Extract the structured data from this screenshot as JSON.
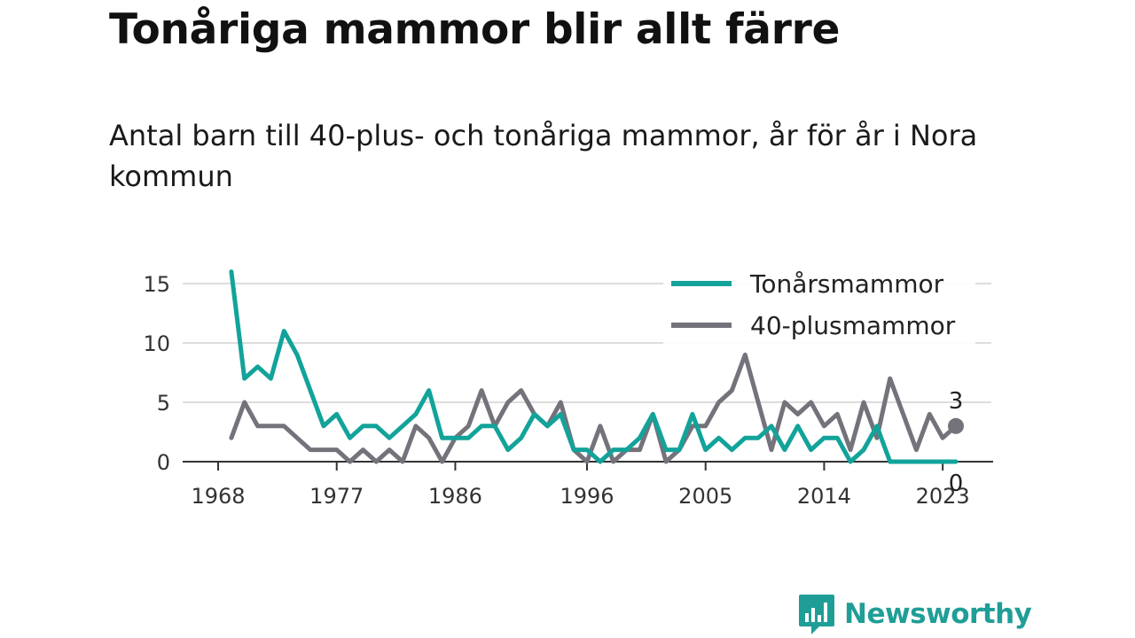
{
  "header": {
    "title": "Tonåriga mammor blir allt färre",
    "subtitle": "Antal barn till 40-plus- och tonåriga mammor, år för år i Nora kommun"
  },
  "logo": {
    "text": "Newsworthy",
    "icon": "bar-chart-icon",
    "color": "#1f9e97"
  },
  "colors": {
    "teal": "#12a39a",
    "gray": "#74727a",
    "grid": "#dddddd",
    "axis": "#333333"
  },
  "chart_data": {
    "type": "line",
    "x_ticks": [
      1968,
      1977,
      1986,
      1996,
      2005,
      2014,
      2023
    ],
    "y_ticks": [
      0,
      5,
      10,
      15
    ],
    "ylim": [
      0,
      17
    ],
    "xlim": [
      1968,
      2024
    ],
    "legend_position": "top-right",
    "grid": true,
    "series": [
      {
        "name": "Tonårsmammor",
        "color": "#12a39a",
        "x": [
          1969,
          1970,
          1971,
          1972,
          1973,
          1974,
          1975,
          1976,
          1977,
          1978,
          1979,
          1980,
          1981,
          1982,
          1983,
          1984,
          1985,
          1986,
          1987,
          1988,
          1989,
          1990,
          1991,
          1992,
          1993,
          1994,
          1995,
          1996,
          1997,
          1998,
          1999,
          2000,
          2001,
          2002,
          2003,
          2004,
          2005,
          2006,
          2007,
          2008,
          2009,
          2010,
          2011,
          2012,
          2013,
          2014,
          2015,
          2016,
          2017,
          2018,
          2019,
          2020,
          2021,
          2022,
          2023,
          2024
        ],
        "values": [
          16,
          7,
          8,
          7,
          11,
          9,
          6,
          3,
          4,
          2,
          3,
          3,
          2,
          3,
          4,
          6,
          2,
          2,
          2,
          3,
          3,
          1,
          2,
          4,
          3,
          4,
          1,
          1,
          0,
          1,
          1,
          2,
          4,
          1,
          1,
          4,
          1,
          2,
          1,
          2,
          2,
          3,
          1,
          3,
          1,
          2,
          2,
          0,
          1,
          3,
          0,
          0,
          0,
          0,
          0,
          0
        ]
      },
      {
        "name": "40-plusmammor",
        "color": "#74727a",
        "x": [
          1969,
          1970,
          1971,
          1972,
          1973,
          1974,
          1975,
          1976,
          1977,
          1978,
          1979,
          1980,
          1981,
          1982,
          1983,
          1984,
          1985,
          1986,
          1987,
          1988,
          1989,
          1990,
          1991,
          1992,
          1993,
          1994,
          1995,
          1996,
          1997,
          1998,
          1999,
          2000,
          2001,
          2002,
          2003,
          2004,
          2005,
          2006,
          2007,
          2008,
          2009,
          2010,
          2011,
          2012,
          2013,
          2014,
          2015,
          2016,
          2017,
          2018,
          2019,
          2020,
          2021,
          2022,
          2023,
          2024
        ],
        "values": [
          2,
          5,
          3,
          3,
          3,
          2,
          1,
          1,
          1,
          0,
          1,
          0,
          1,
          0,
          3,
          2,
          0,
          2,
          3,
          6,
          3,
          5,
          6,
          4,
          3,
          5,
          1,
          0,
          3,
          0,
          1,
          1,
          4,
          0,
          1,
          3,
          3,
          5,
          6,
          9,
          5,
          1,
          5,
          4,
          5,
          3,
          4,
          1,
          5,
          2,
          7,
          4,
          1,
          4,
          2,
          3
        ]
      }
    ],
    "end_labels": [
      {
        "series": "40-plusmammor",
        "text": "3"
      },
      {
        "series": "Tonårsmammor",
        "text": "0"
      }
    ]
  }
}
